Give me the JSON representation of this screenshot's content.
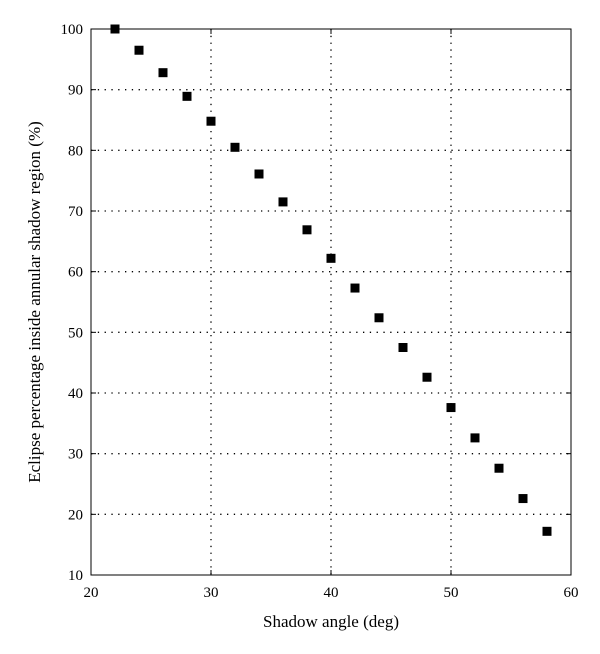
{
  "chart_data": {
    "type": "scatter",
    "xlabel": "Shadow angle (deg)",
    "ylabel": "Eclipse percentage inside annular shadow region (%)",
    "xlim": [
      20,
      60
    ],
    "ylim": [
      10,
      100
    ],
    "xticks": [
      20,
      30,
      40,
      50,
      60
    ],
    "yticks": [
      10,
      20,
      30,
      40,
      50,
      60,
      70,
      80,
      90,
      100
    ],
    "grid": true,
    "marker": "square",
    "marker_color": "#000000",
    "series": [
      {
        "x": [
          22,
          24,
          26,
          28,
          30,
          32,
          34,
          36,
          38,
          40,
          42,
          44,
          46,
          48,
          50,
          52,
          54,
          56,
          58
        ],
        "y": [
          100,
          96.5,
          92.8,
          88.9,
          84.8,
          80.5,
          76.1,
          71.5,
          66.9,
          62.2,
          57.3,
          52.4,
          47.5,
          42.6,
          37.6,
          32.6,
          27.6,
          22.6,
          17.2
        ]
      }
    ]
  }
}
